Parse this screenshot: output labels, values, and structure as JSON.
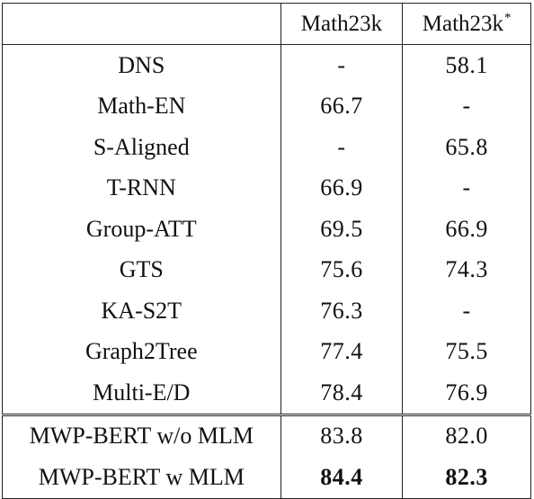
{
  "table": {
    "columns": [
      "",
      "Math23k",
      "Math23k",
      "*"
    ],
    "rows": [
      {
        "model": "DNS",
        "math23k": "-",
        "math23k_star": "58.1"
      },
      {
        "model": "Math-EN",
        "math23k": "66.7",
        "math23k_star": "-"
      },
      {
        "model": "S-Aligned",
        "math23k": "-",
        "math23k_star": "65.8"
      },
      {
        "model": "T-RNN",
        "math23k": "66.9",
        "math23k_star": "-"
      },
      {
        "model": "Group-ATT",
        "math23k": "69.5",
        "math23k_star": "66.9"
      },
      {
        "model": "GTS",
        "math23k": "75.6",
        "math23k_star": "74.3"
      },
      {
        "model": "KA-S2T",
        "math23k": "76.3",
        "math23k_star": "-"
      },
      {
        "model": "Graph2Tree",
        "math23k": "77.4",
        "math23k_star": "75.5"
      },
      {
        "model": "Multi-E/D",
        "math23k": "78.4",
        "math23k_star": "76.9"
      },
      {
        "model": "MWP-BERT w/o MLM",
        "math23k": "83.8",
        "math23k_star": "82.0"
      },
      {
        "model": "MWP-BERT w MLM",
        "math23k": "84.4",
        "math23k_star": "82.3"
      }
    ]
  }
}
